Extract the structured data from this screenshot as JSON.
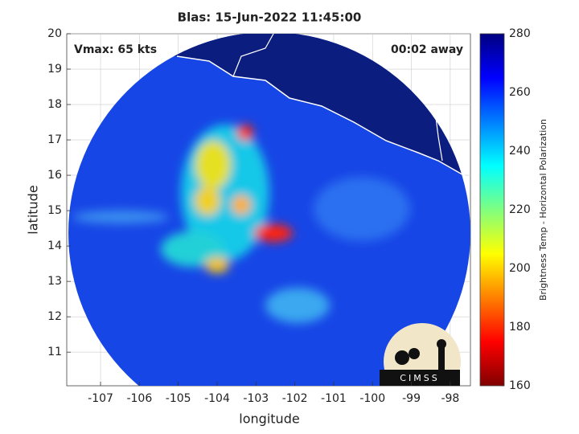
{
  "map": {
    "title": "Blas: 15-Jun-2022 11:45:00",
    "xlabel": "longitude",
    "ylabel": "latitude",
    "xlim": [
      -107.87,
      -97.48
    ],
    "ylim": [
      10.05,
      20
    ],
    "xticks": [
      -107,
      -106,
      -105,
      -104,
      -103,
      -102,
      -101,
      -100,
      -99,
      -98
    ],
    "yticks": [
      11,
      12,
      13,
      14,
      15,
      16,
      17,
      18,
      19,
      20
    ],
    "grid": true,
    "vmax": "Vmax: 65 kts",
    "time_away": "00:02 away",
    "logo": "CIMSS"
  },
  "colorbar": {
    "label": "Brightness Temp - Horizontal Polarization",
    "lim": [
      160,
      280
    ],
    "ticks": [
      160,
      180,
      200,
      220,
      240,
      260,
      280
    ]
  }
}
